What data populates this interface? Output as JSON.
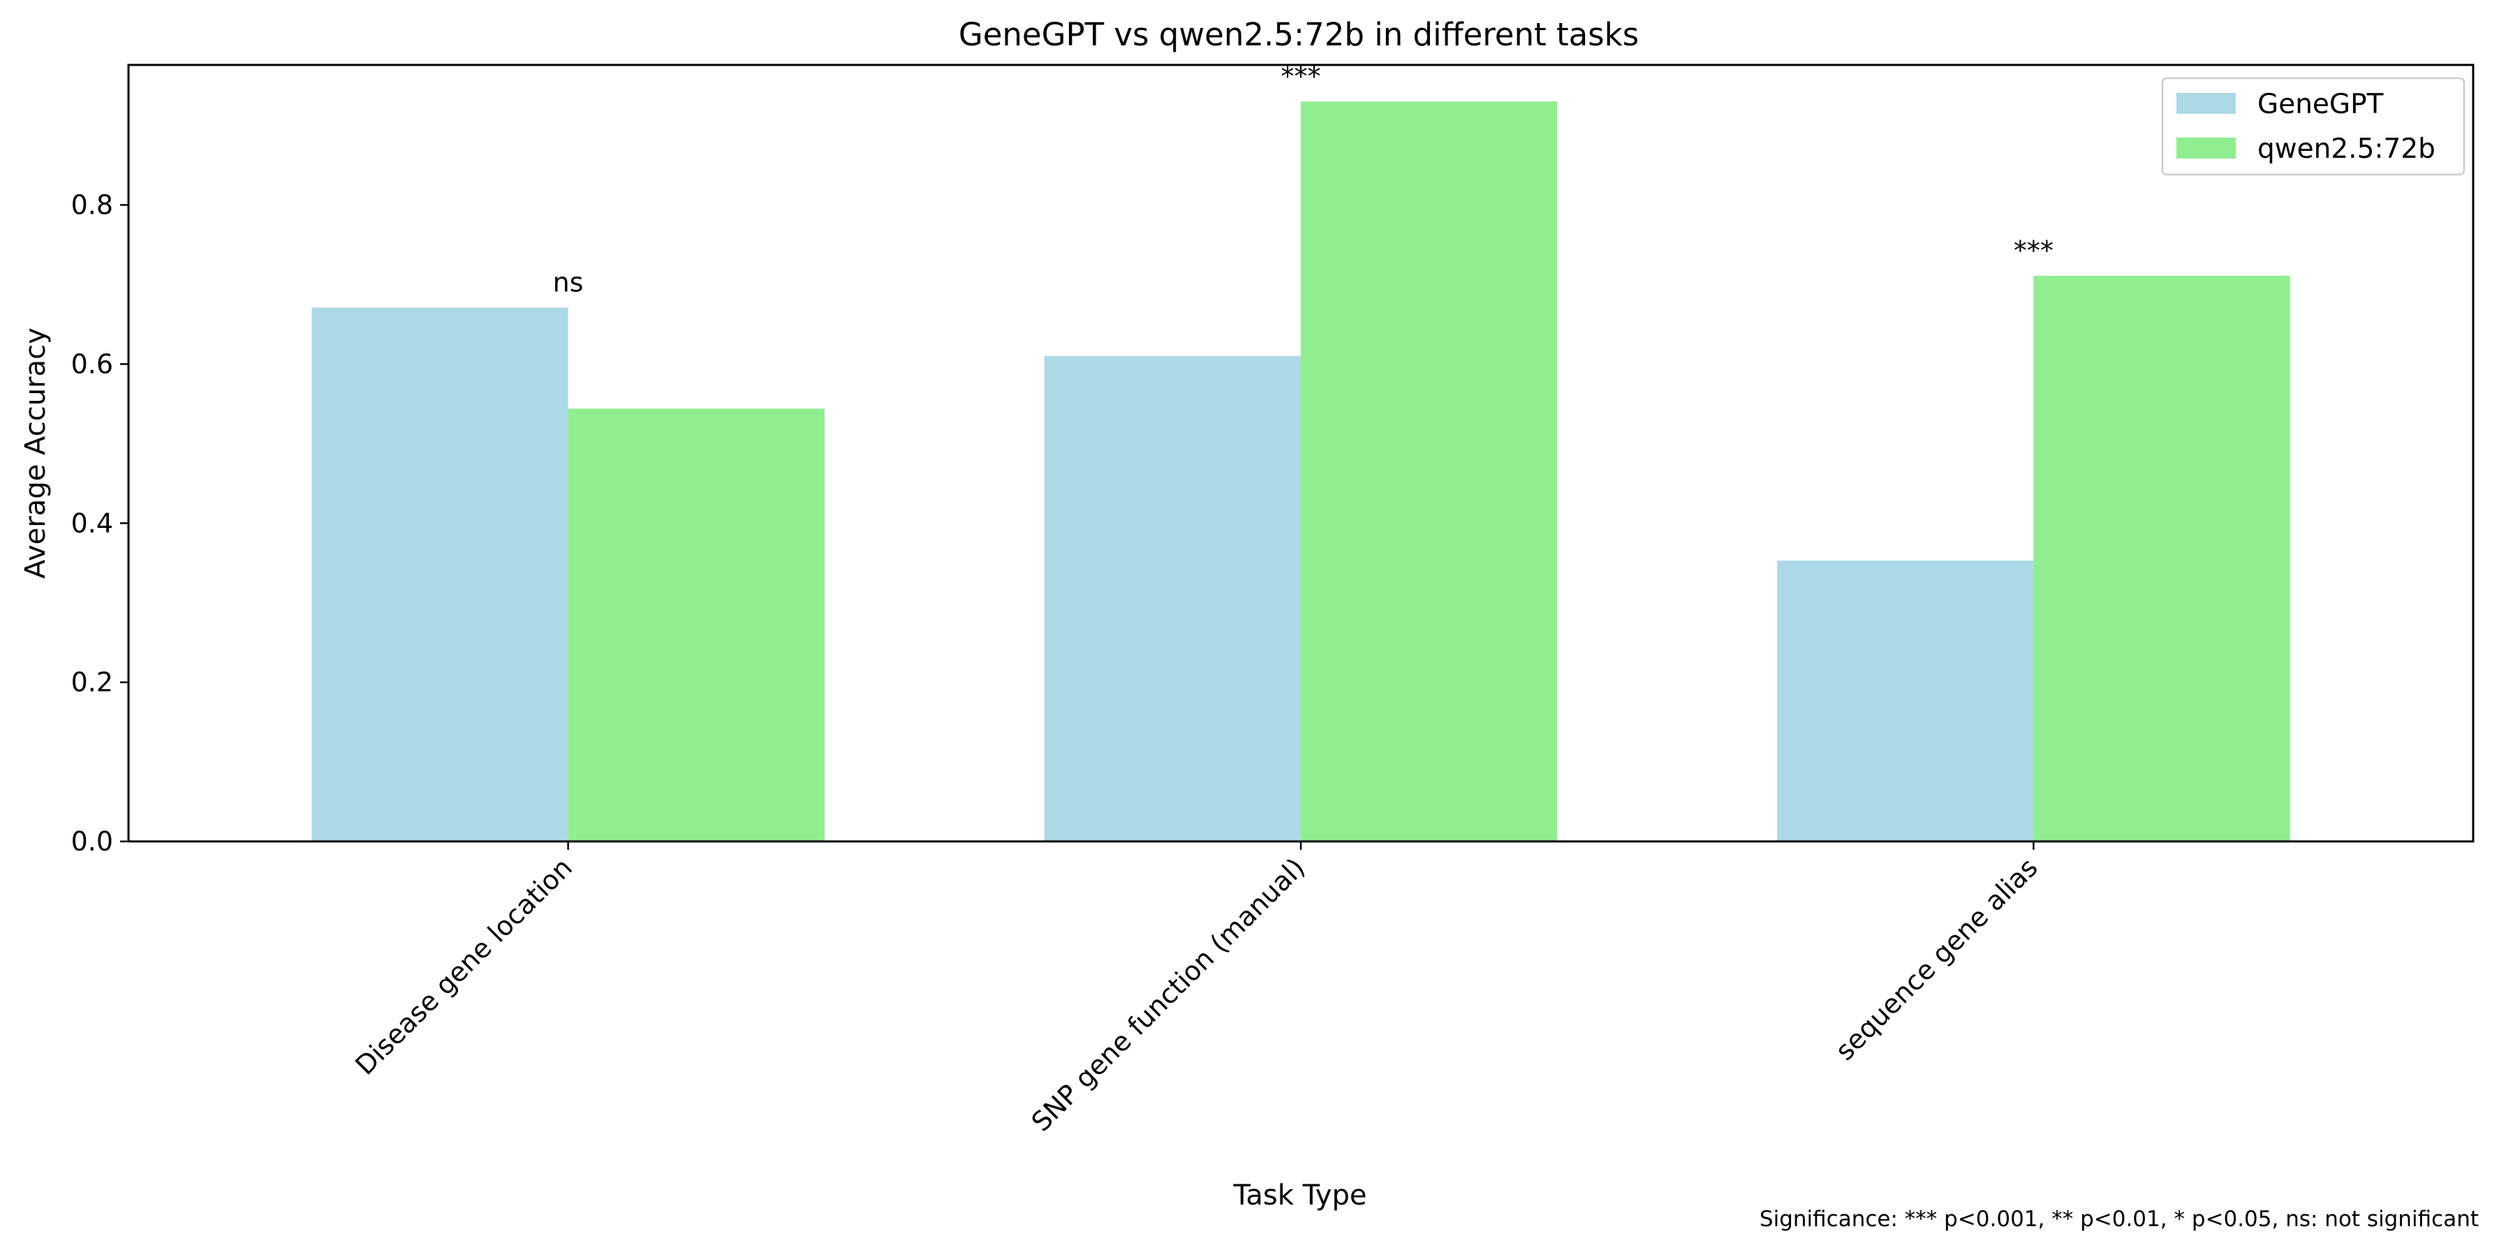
{
  "chart_data": {
    "type": "bar",
    "title": "GeneGPT vs qwen2.5:72b in different tasks",
    "xlabel": "Task Type",
    "ylabel": "Average Accuracy",
    "ylim": [
      0,
      0.976
    ],
    "yticks": [
      "0.0",
      "0.2",
      "0.4",
      "0.6",
      "0.8"
    ],
    "categories": [
      "Disease gene location",
      "SNP gene function (manual)",
      "sequence gene alias"
    ],
    "series": [
      {
        "name": "GeneGPT",
        "values": [
          0.671,
          0.61,
          0.353
        ],
        "color": "#add8e6"
      },
      {
        "name": "qwen2.5:72b",
        "values": [
          0.544,
          0.93,
          0.711
        ],
        "color": "#90ee90"
      }
    ],
    "significance": [
      "ns",
      "***",
      "***"
    ],
    "grid": false,
    "legend_position": "top-right",
    "footnote": "Significance: *** p<0.001, ** p<0.01, * p<0.05, ns: not significant"
  }
}
